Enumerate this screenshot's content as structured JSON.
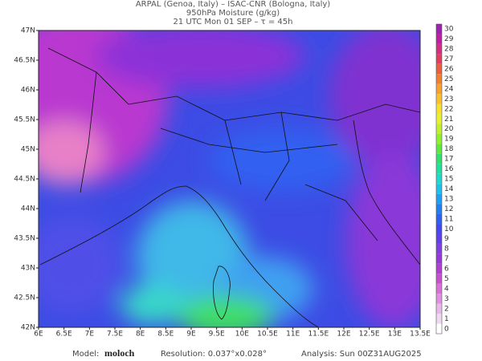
{
  "header": {
    "line1": "ARPAL (Genoa, Italy)  –  ISAC-CNR (Bologna, Italy)",
    "line2": "950hPa Moisture (g/kg)",
    "line3": "21 UTC Mon 01 SEP  –  τ = 45h"
  },
  "map": {
    "xlim": [
      6,
      13.5
    ],
    "ylim": [
      42,
      47
    ],
    "xticks": [
      {
        "value": 6,
        "label": "6E"
      },
      {
        "value": 6.5,
        "label": "6.5E"
      },
      {
        "value": 7,
        "label": "7E"
      },
      {
        "value": 7.5,
        "label": "7.5E"
      },
      {
        "value": 8,
        "label": "8E"
      },
      {
        "value": 8.5,
        "label": "8.5E"
      },
      {
        "value": 9,
        "label": "9E"
      },
      {
        "value": 9.5,
        "label": "9.5E"
      },
      {
        "value": 10,
        "label": "10E"
      },
      {
        "value": 10.5,
        "label": "10.5E"
      },
      {
        "value": 11,
        "label": "11E"
      },
      {
        "value": 11.5,
        "label": "11.5E"
      },
      {
        "value": 12,
        "label": "12E"
      },
      {
        "value": 12.5,
        "label": "12.5E"
      },
      {
        "value": 13,
        "label": "13E"
      },
      {
        "value": 13.5,
        "label": "13.5E"
      }
    ],
    "yticks": [
      {
        "value": 42,
        "label": "42N"
      },
      {
        "value": 42.5,
        "label": "42.5N"
      },
      {
        "value": 43,
        "label": "43N"
      },
      {
        "value": 43.5,
        "label": "43.5N"
      },
      {
        "value": 44,
        "label": "44N"
      },
      {
        "value": 44.5,
        "label": "44.5N"
      },
      {
        "value": 45,
        "label": "45N"
      },
      {
        "value": 45.5,
        "label": "45.5N"
      },
      {
        "value": 46,
        "label": "46N"
      },
      {
        "value": 46.5,
        "label": "46.5N"
      },
      {
        "value": 47,
        "label": "47N"
      }
    ]
  },
  "colorbar": {
    "levels": [
      0,
      1,
      2,
      3,
      4,
      5,
      6,
      7,
      8,
      9,
      10,
      11,
      12,
      13,
      14,
      15,
      16,
      17,
      18,
      19,
      20,
      21,
      22,
      23,
      24,
      25,
      26,
      27,
      28,
      29,
      30
    ],
    "colors": [
      "#ffffff",
      "#f0d8f0",
      "#e8b8e8",
      "#e090e0",
      "#d870d8",
      "#c850d0",
      "#b040d0",
      "#9838d8",
      "#8040e0",
      "#6040e8",
      "#4848f0",
      "#3060f0",
      "#2080f0",
      "#20a0f0",
      "#20c0e8",
      "#20d8d0",
      "#20e0a0",
      "#30e070",
      "#60e840",
      "#90f030",
      "#c0f030",
      "#e8f030",
      "#f8e030",
      "#f8c030",
      "#f8a030",
      "#f08030",
      "#e86040",
      "#e04060",
      "#d03080",
      "#c020a0",
      "#a020b0"
    ]
  },
  "footer": {
    "model_label": "Model:",
    "model": "moloch",
    "resolution": "Resolution: 0.037°x0.028°",
    "analysis": "Analysis: Sun 00Z31AUG2025"
  }
}
